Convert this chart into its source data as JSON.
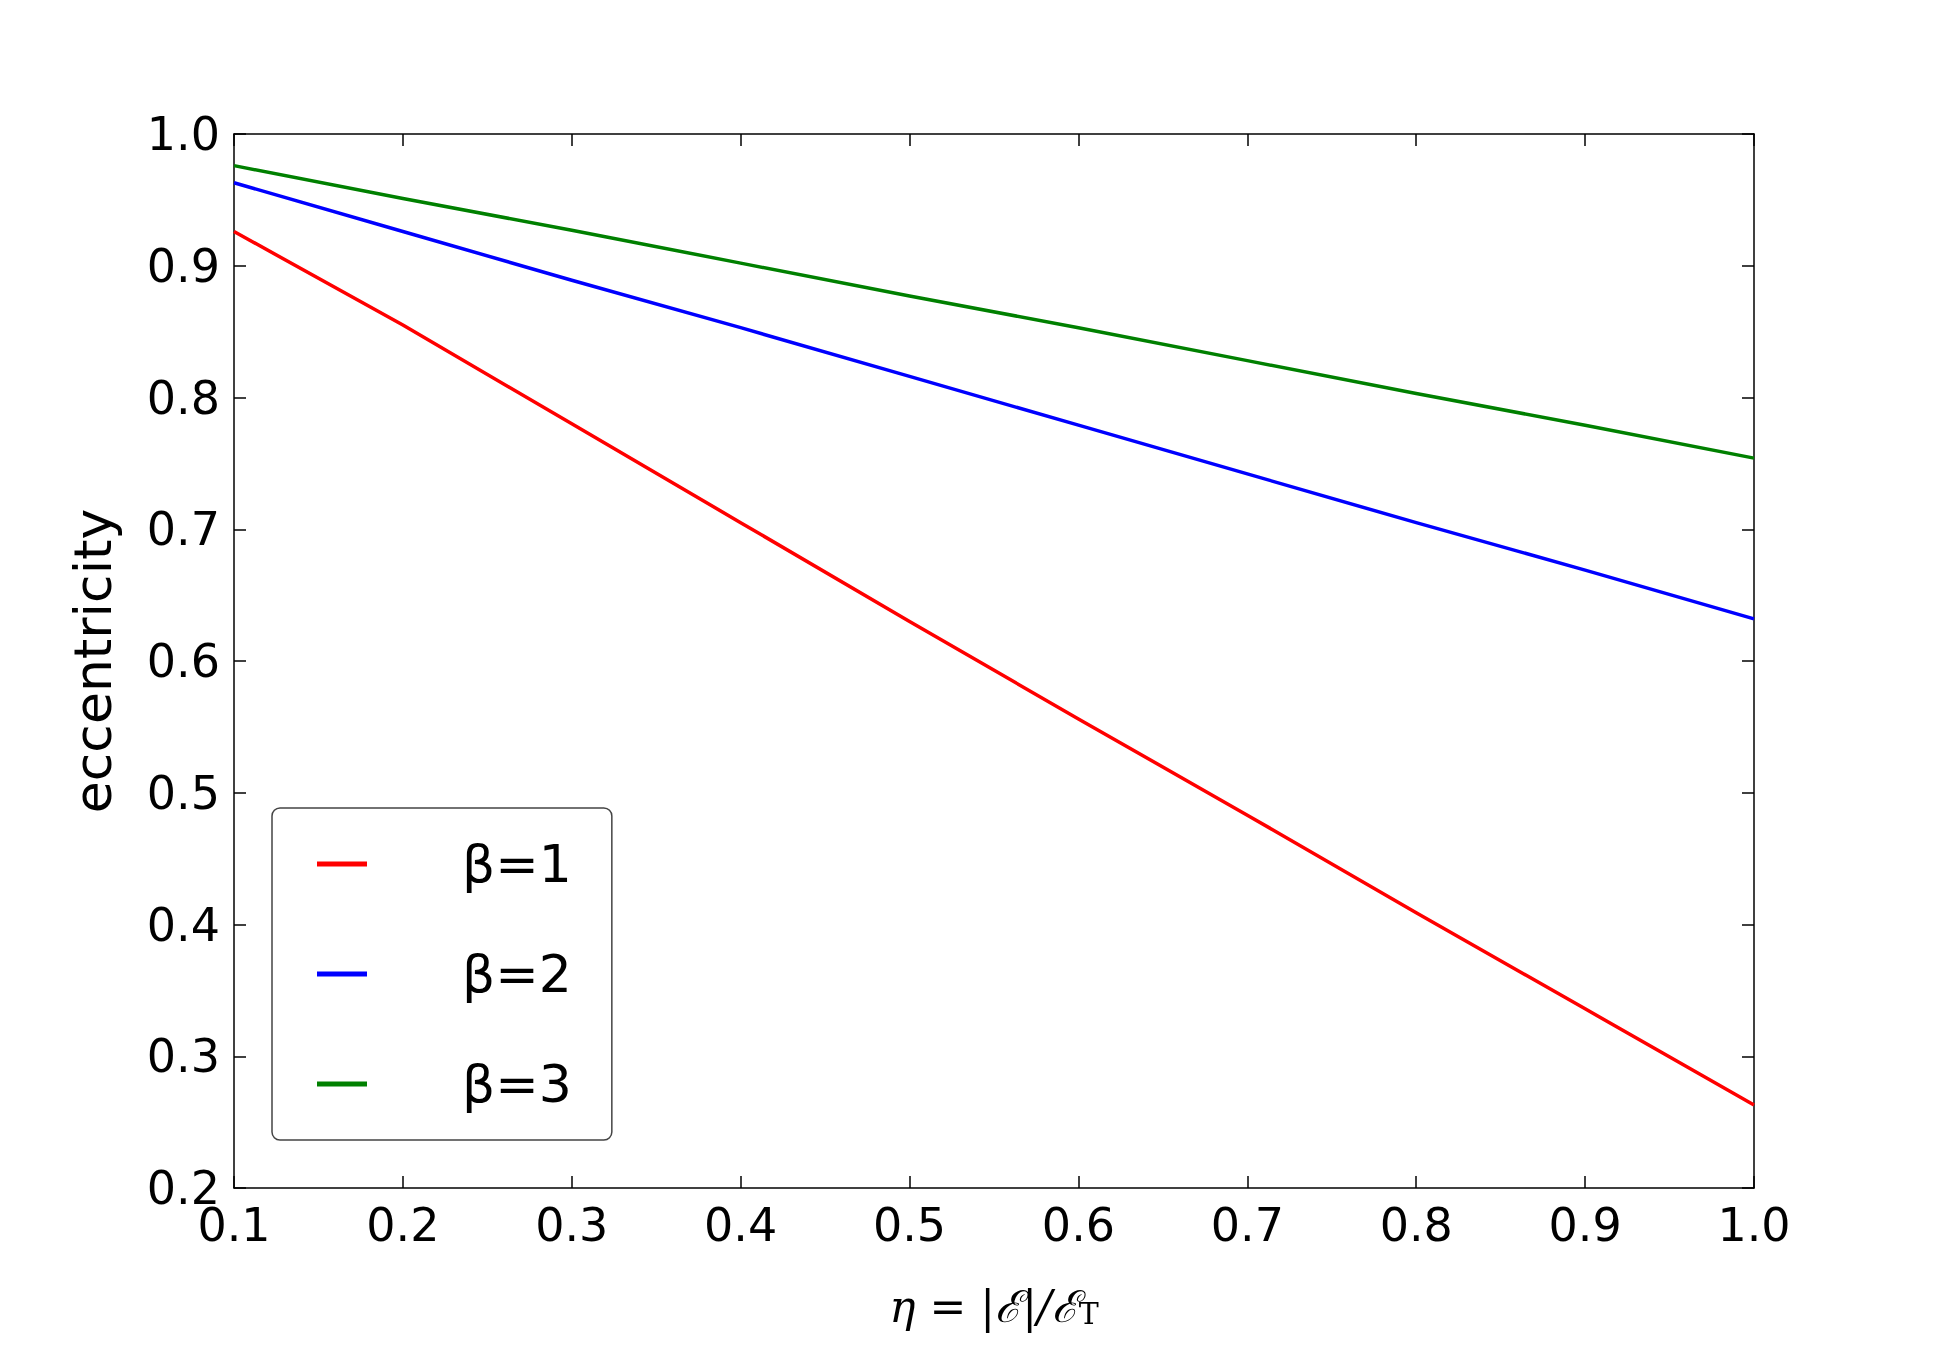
{
  "chart_data": {
    "type": "line",
    "xlabel": "η = |ℰ|/ℰ$_{T}$",
    "ylabel": "eccentricity",
    "x": [
      0.1,
      0.2,
      0.3,
      0.4,
      0.5,
      0.6,
      0.7,
      0.8,
      0.9,
      1.0
    ],
    "series": [
      {
        "name": "β=1",
        "color": "#ff0000",
        "values": [
          0.926,
          0.855,
          0.78,
          0.705,
          0.63,
          0.556,
          0.483,
          0.409,
          0.336,
          0.263
        ]
      },
      {
        "name": "β=2",
        "color": "#0000ff",
        "values": [
          0.963,
          0.926,
          0.889,
          0.853,
          0.816,
          0.779,
          0.742,
          0.705,
          0.669,
          0.632
        ]
      },
      {
        "name": "β=3",
        "color": "#008000",
        "values": [
          0.976,
          0.951,
          0.927,
          0.902,
          0.877,
          0.853,
          0.828,
          0.803,
          0.779,
          0.754
        ]
      }
    ],
    "xlim": [
      0.1,
      1.0
    ],
    "xticks": [
      0.1,
      0.2,
      0.3,
      0.4,
      0.5,
      0.6,
      0.7,
      0.8,
      0.9,
      {
        "value": 1,
        "label": "1.0"
      }
    ],
    "ylim": [
      0.2,
      1.0
    ],
    "yticks": [
      0.2,
      0.3,
      0.4,
      0.5,
      0.6,
      0.7,
      0.8,
      0.9,
      {
        "value": 1,
        "label": "1.0"
      }
    ],
    "grid": false,
    "legend": "bottom left",
    "marker": "none",
    "line_style": "solid"
  }
}
